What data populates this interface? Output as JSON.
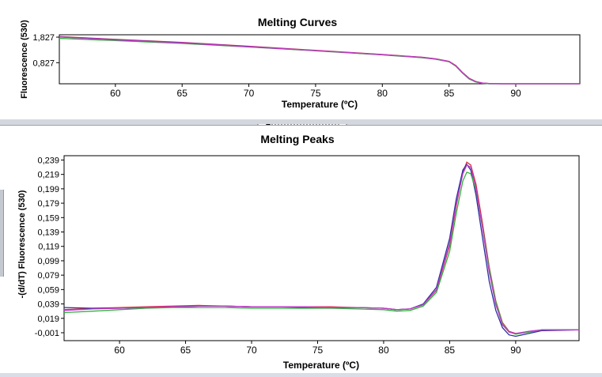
{
  "chart_data": [
    {
      "type": "line",
      "title": "Melting Curves",
      "xlabel": "Temperature (ºC)",
      "ylabel": "Fluorescence (530)",
      "xlim": [
        55.8,
        94.8
      ],
      "ylim": [
        0.0,
        1.92
      ],
      "x_ticks": [
        60,
        65,
        70,
        75,
        80,
        85,
        90
      ],
      "x_tick_labels": [
        "60",
        "65",
        "70",
        "75",
        "80",
        "85",
        "90"
      ],
      "y_ticks": [
        0.827,
        1.827
      ],
      "y_tick_labels": [
        "0,827",
        "1,827"
      ],
      "grid": false,
      "series": [
        {
          "color": "#e0303a",
          "x": [
            55.8,
            60,
            65,
            70,
            75,
            80,
            83,
            84,
            85,
            85.5,
            86,
            86.5,
            87,
            87.5,
            88,
            89,
            90,
            92,
            94.8
          ],
          "y": [
            1.85,
            1.74,
            1.62,
            1.47,
            1.31,
            1.15,
            1.04,
            0.98,
            0.88,
            0.72,
            0.45,
            0.22,
            0.09,
            0.03,
            0.01,
            0.0,
            0.0,
            0.0,
            0.0
          ]
        },
        {
          "color": "#2a2f9e",
          "x": [
            55.8,
            60,
            65,
            70,
            75,
            80,
            83,
            84,
            85,
            85.5,
            86,
            86.5,
            87,
            87.5,
            88,
            89,
            90,
            92,
            94.8
          ],
          "y": [
            1.84,
            1.73,
            1.61,
            1.46,
            1.3,
            1.14,
            1.03,
            0.97,
            0.87,
            0.7,
            0.43,
            0.2,
            0.08,
            0.02,
            0.0,
            0.0,
            0.0,
            0.0,
            0.0
          ]
        },
        {
          "color": "#2fb33a",
          "x": [
            55.8,
            60,
            65,
            70,
            75,
            80,
            83,
            84,
            85,
            85.5,
            86,
            86.5,
            87,
            87.5,
            88,
            89,
            90,
            92,
            94.8
          ],
          "y": [
            1.78,
            1.69,
            1.58,
            1.44,
            1.29,
            1.13,
            1.02,
            0.96,
            0.86,
            0.69,
            0.42,
            0.19,
            0.07,
            0.02,
            0.0,
            0.0,
            0.0,
            0.0,
            0.0
          ]
        },
        {
          "color": "#c03ac8",
          "x": [
            55.8,
            60,
            65,
            70,
            75,
            80,
            83,
            84,
            85,
            85.5,
            86,
            86.5,
            87,
            87.5,
            88,
            89,
            90,
            92,
            94.8
          ],
          "y": [
            1.83,
            1.72,
            1.6,
            1.45,
            1.3,
            1.14,
            1.03,
            0.97,
            0.87,
            0.71,
            0.44,
            0.21,
            0.08,
            0.03,
            0.01,
            0.0,
            0.0,
            0.0,
            0.0
          ]
        }
      ]
    },
    {
      "type": "line",
      "title": "Melting Peaks",
      "xlabel": "Temperature (ºC)",
      "ylabel": "-(d/dT) Fluorescence (530)",
      "xlim": [
        55.8,
        94.8
      ],
      "ylim": [
        -0.012,
        0.245
      ],
      "x_ticks": [
        60,
        65,
        70,
        75,
        80,
        85,
        90
      ],
      "x_tick_labels": [
        "60",
        "65",
        "70",
        "75",
        "80",
        "85",
        "90"
      ],
      "y_ticks": [
        -0.001,
        0.019,
        0.039,
        0.059,
        0.079,
        0.099,
        0.119,
        0.139,
        0.159,
        0.179,
        0.199,
        0.219,
        0.239
      ],
      "y_tick_labels": [
        "-0,001",
        "0,019",
        "0,039",
        "0,059",
        "0,079",
        "0,099",
        "0,119",
        "0,139",
        "0,159",
        "0,179",
        "0,199",
        "0,219",
        "0,239"
      ],
      "grid": false,
      "series": [
        {
          "color": "#e0303a",
          "x": [
            55.8,
            58,
            60,
            62,
            64,
            66,
            68,
            70,
            72,
            74,
            76,
            78,
            80,
            81,
            82,
            83,
            84,
            85,
            85.5,
            86,
            86.3,
            86.6,
            87,
            87.5,
            88,
            88.5,
            89,
            89.5,
            90,
            91,
            92,
            94.8
          ],
          "y": [
            0.031,
            0.033,
            0.034,
            0.035,
            0.036,
            0.037,
            0.036,
            0.035,
            0.035,
            0.035,
            0.035,
            0.034,
            0.033,
            0.031,
            0.032,
            0.038,
            0.058,
            0.12,
            0.175,
            0.222,
            0.236,
            0.232,
            0.205,
            0.15,
            0.09,
            0.043,
            0.013,
            0.001,
            -0.002,
            0.0,
            0.003,
            0.003
          ]
        },
        {
          "color": "#2a2f9e",
          "x": [
            55.8,
            58,
            60,
            62,
            64,
            66,
            68,
            70,
            72,
            74,
            76,
            78,
            80,
            81,
            82,
            83,
            84,
            85,
            85.5,
            86,
            86.3,
            86.6,
            87,
            87.5,
            88,
            88.5,
            89,
            89.5,
            90,
            91,
            92,
            94.8
          ],
          "y": [
            0.034,
            0.033,
            0.033,
            0.034,
            0.035,
            0.036,
            0.036,
            0.035,
            0.035,
            0.034,
            0.034,
            0.034,
            0.033,
            0.031,
            0.032,
            0.039,
            0.062,
            0.13,
            0.185,
            0.225,
            0.233,
            0.225,
            0.19,
            0.13,
            0.07,
            0.03,
            0.006,
            -0.004,
            -0.006,
            -0.002,
            0.002,
            0.003
          ]
        },
        {
          "color": "#2fb33a",
          "x": [
            55.8,
            58,
            60,
            62,
            64,
            66,
            68,
            70,
            72,
            74,
            76,
            78,
            80,
            81,
            82,
            83,
            84,
            85,
            85.5,
            86,
            86.3,
            86.6,
            87,
            87.5,
            88,
            88.5,
            89,
            89.5,
            90,
            91,
            92,
            94.8
          ],
          "y": [
            0.027,
            0.029,
            0.031,
            0.033,
            0.034,
            0.034,
            0.034,
            0.033,
            0.033,
            0.033,
            0.033,
            0.032,
            0.031,
            0.029,
            0.03,
            0.036,
            0.055,
            0.112,
            0.165,
            0.21,
            0.222,
            0.22,
            0.197,
            0.145,
            0.088,
            0.042,
            0.012,
            0.0,
            -0.003,
            0.0,
            0.003,
            0.003
          ]
        },
        {
          "color": "#c03ac8",
          "x": [
            55.8,
            58,
            60,
            62,
            64,
            66,
            68,
            70,
            72,
            74,
            76,
            78,
            80,
            81,
            82,
            83,
            84,
            85,
            85.5,
            86,
            86.3,
            86.6,
            87,
            87.5,
            88,
            88.5,
            89,
            89.5,
            90,
            91,
            92,
            94.8
          ],
          "y": [
            0.03,
            0.032,
            0.033,
            0.034,
            0.035,
            0.036,
            0.036,
            0.035,
            0.035,
            0.035,
            0.034,
            0.034,
            0.033,
            0.031,
            0.032,
            0.038,
            0.059,
            0.123,
            0.178,
            0.22,
            0.232,
            0.229,
            0.2,
            0.143,
            0.083,
            0.038,
            0.01,
            0.0,
            -0.002,
            0.001,
            0.003,
            0.003
          ]
        }
      ]
    }
  ]
}
